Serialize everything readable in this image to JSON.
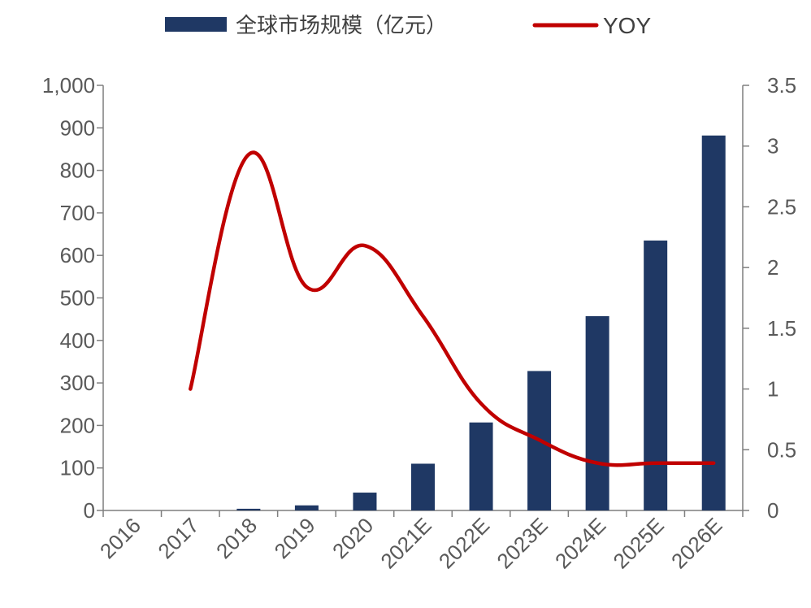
{
  "chart_data": {
    "type": "bar",
    "categories": [
      "2016",
      "2017",
      "2018",
      "2019",
      "2020",
      "2021E",
      "2022E",
      "2023E",
      "2024E",
      "2025E",
      "2026E"
    ],
    "series": [
      {
        "name": "全球市场规模（亿元）",
        "type": "bar",
        "axis": "left",
        "values": [
          0,
          0,
          4,
          12,
          42,
          110,
          207,
          328,
          457,
          635,
          882
        ]
      },
      {
        "name": "YOY",
        "type": "line",
        "axis": "right",
        "values": [
          null,
          1.0,
          2.93,
          1.84,
          2.18,
          1.6,
          0.88,
          0.58,
          0.39,
          0.39,
          0.39
        ]
      }
    ],
    "ylim_left": [
      0,
      1000
    ],
    "yticks_left": [
      "0",
      "100",
      "200",
      "300",
      "400",
      "500",
      "600",
      "700",
      "800",
      "900",
      "1,000"
    ],
    "ylim_right": [
      0,
      3.5
    ],
    "yticks_right": [
      "0",
      "0.5",
      "1",
      "1.5",
      "2",
      "2.5",
      "3",
      "3.5"
    ],
    "grid": false,
    "legend_position": "top",
    "colors": {
      "bar": "#1F3864",
      "line": "#C00000",
      "axis": "#7F7F7F",
      "text": "#595959"
    }
  }
}
